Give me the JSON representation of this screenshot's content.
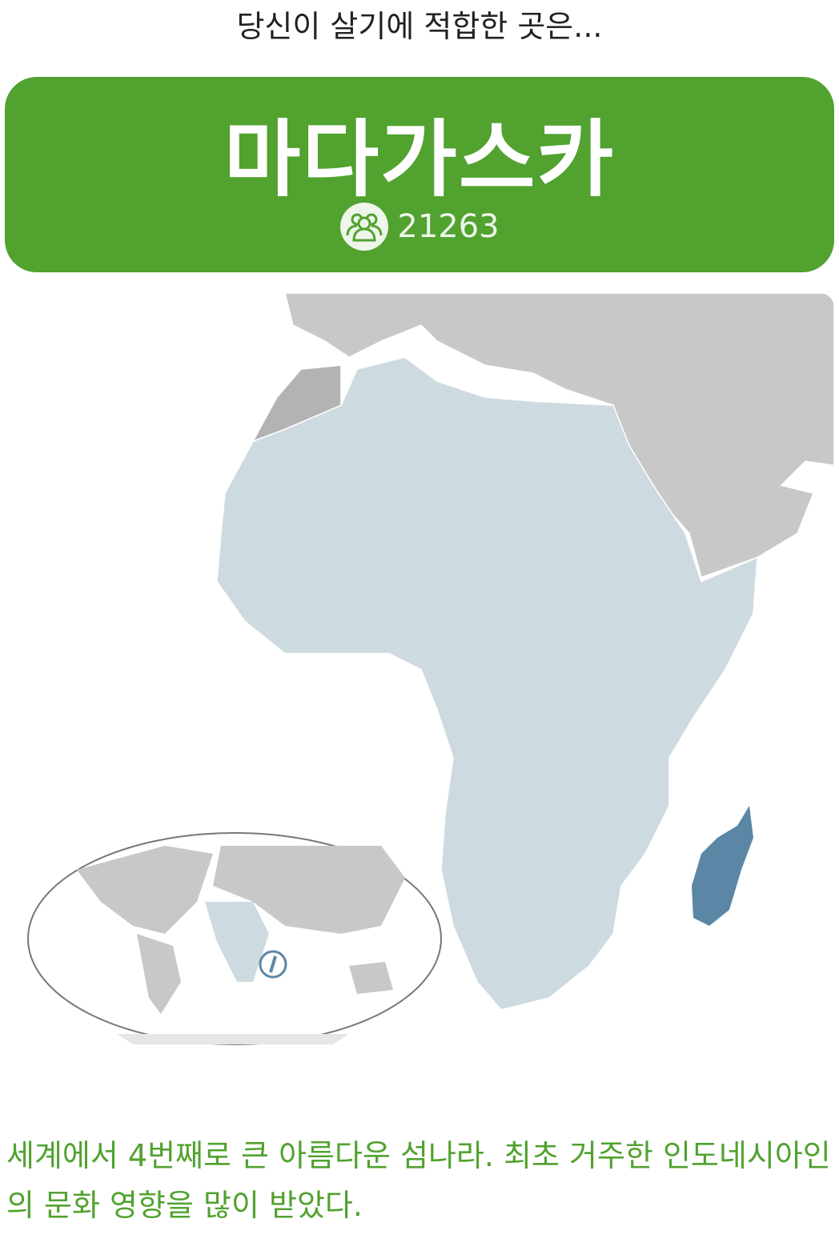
{
  "header": {
    "subtitle": "당신이 살기에 적합한 곳은..."
  },
  "result": {
    "country": "마다가스카",
    "vote_count": "21263",
    "vote_icon": "people-group-icon",
    "brand_color": "#51a22f"
  },
  "map": {
    "highlight_color": "#5b86a5",
    "region_color": "#cddbe1",
    "other_color": "#c8c8c8"
  },
  "description": "세계에서 4번째로 큰 아름다운 섬나라. 최초 거주한 인도네시아인의 문화 영향을 많이 받았다."
}
